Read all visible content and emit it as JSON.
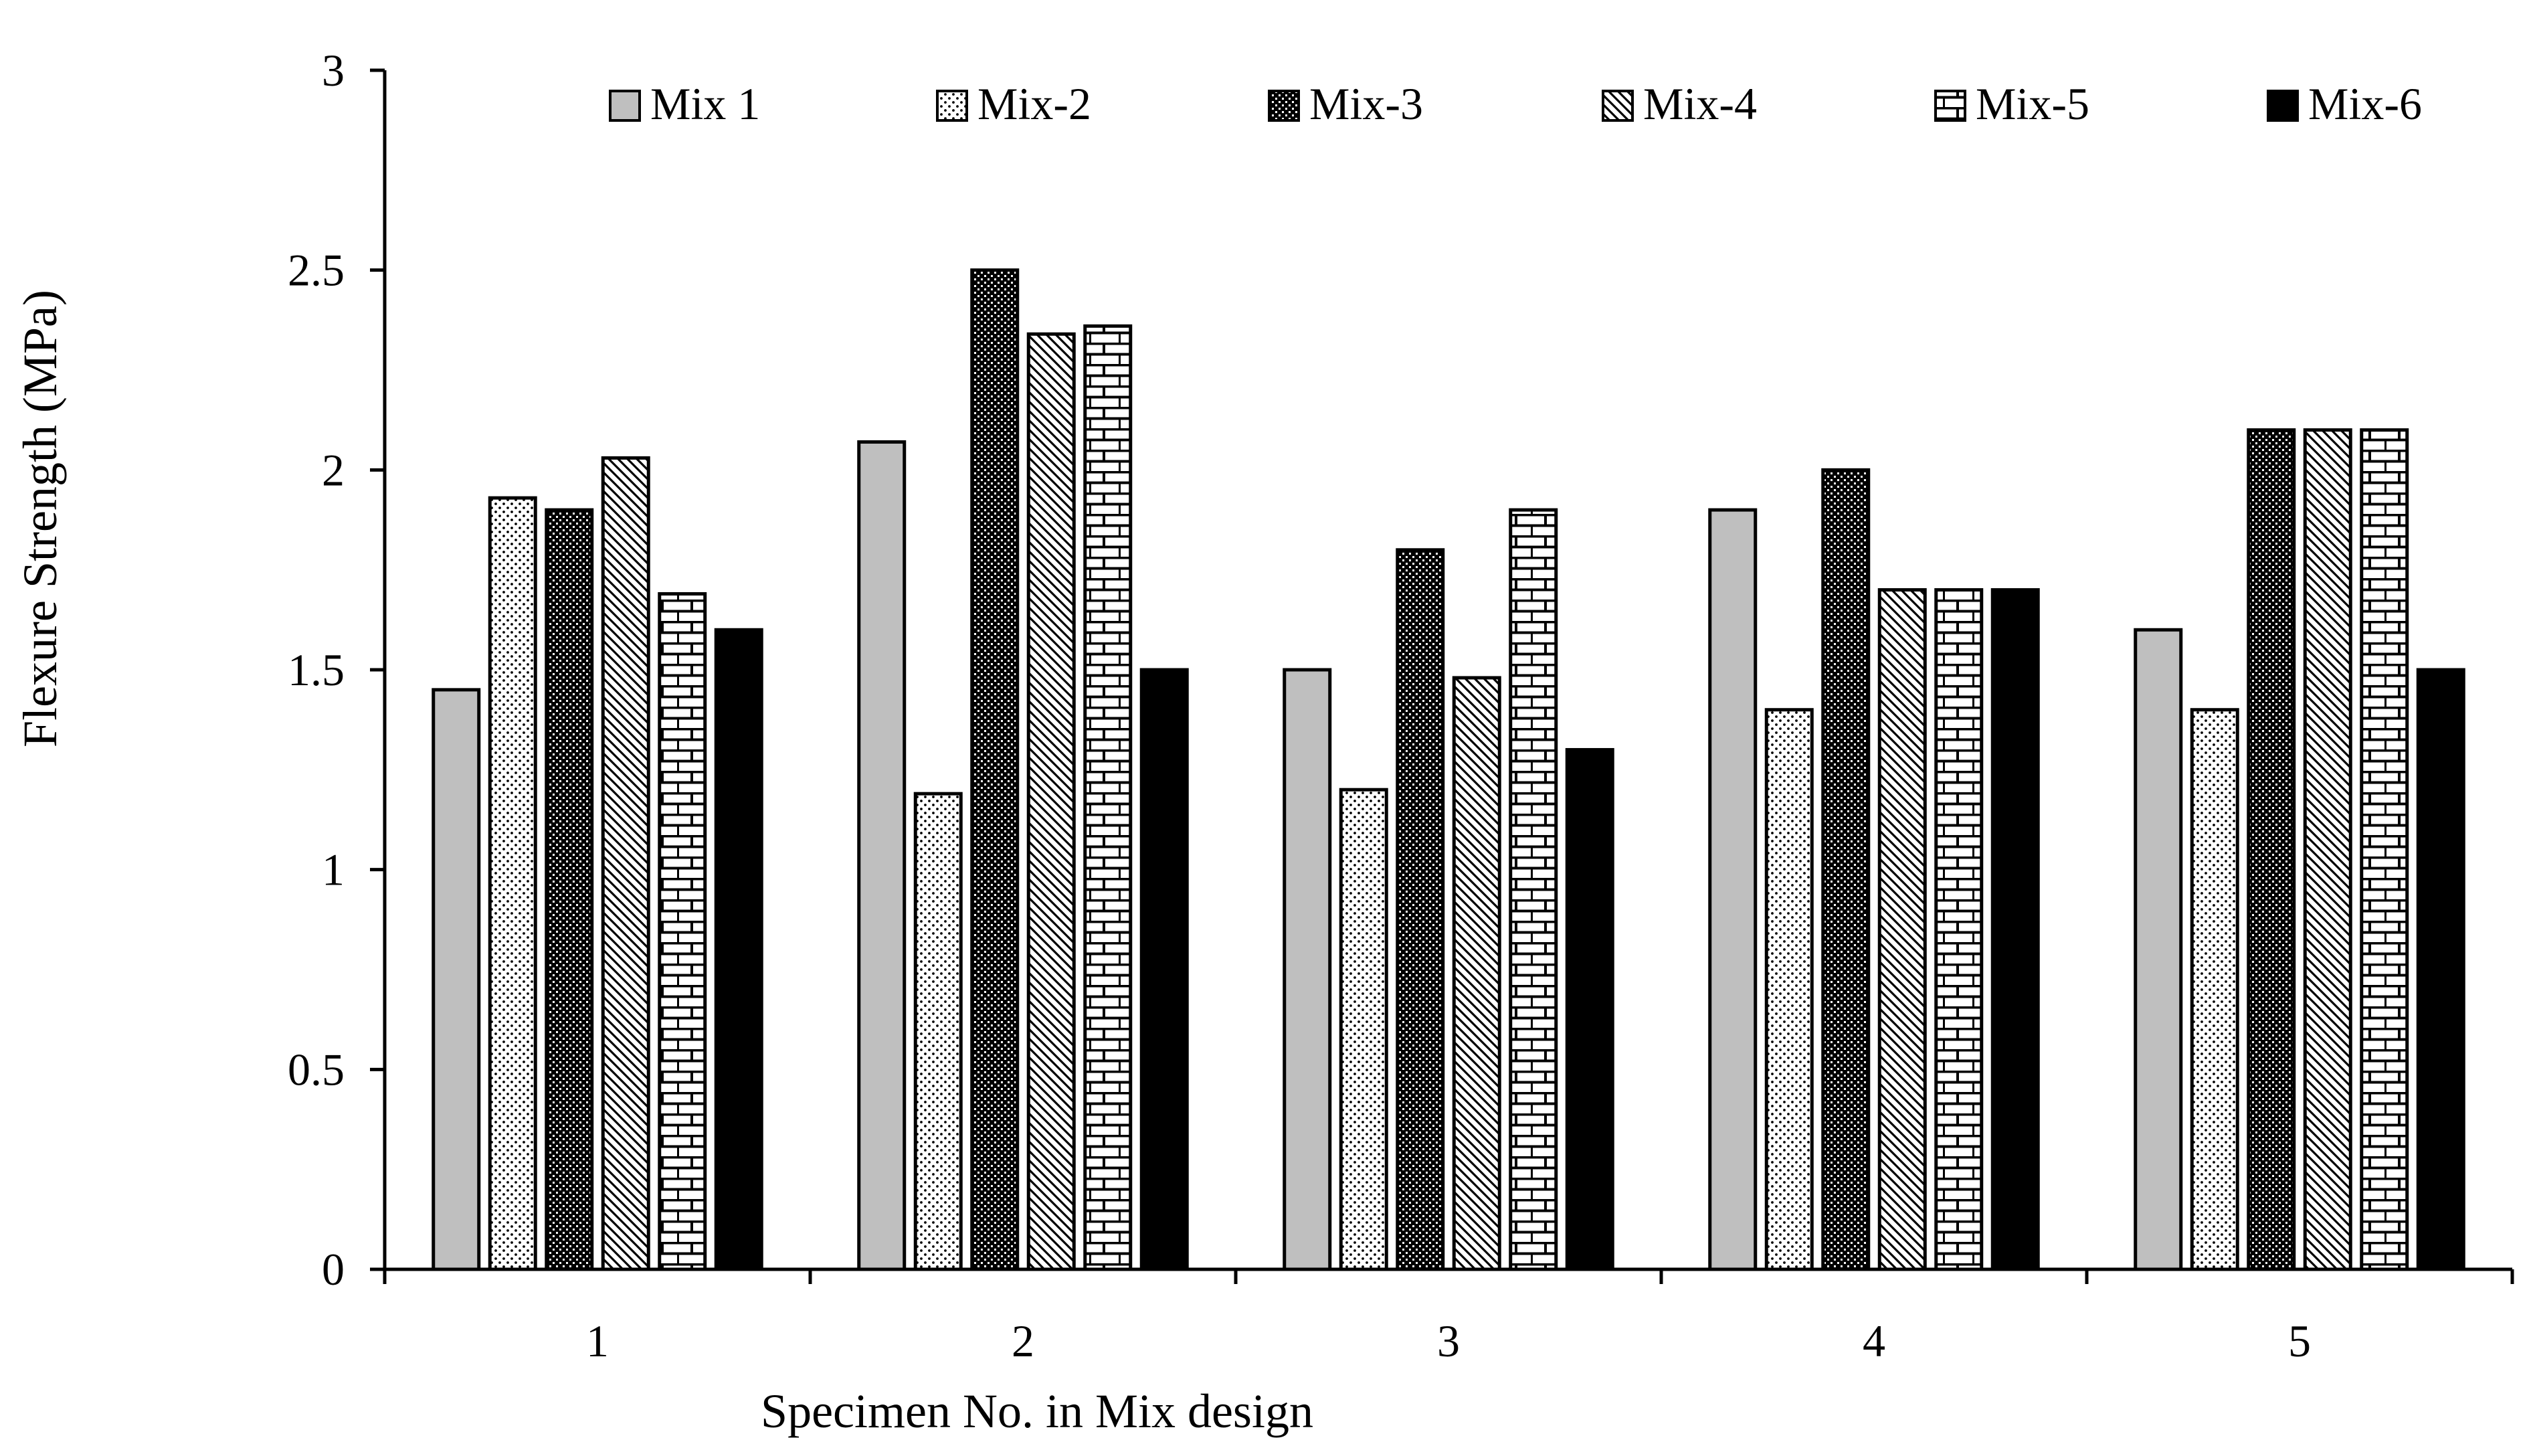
{
  "chart_data": {
    "type": "bar",
    "title": "",
    "xlabel": "Specimen No. in Mix design",
    "ylabel": "Flexure Strength (MPa)",
    "ylim": [
      0,
      3
    ],
    "yticks": [
      "0",
      "0.5",
      "1",
      "1.5",
      "2",
      "2.5",
      "3"
    ],
    "categories": [
      "1",
      "2",
      "3",
      "4",
      "5"
    ],
    "legend_position": "top",
    "series": [
      {
        "name": "Mix 1",
        "pattern": "solid-gray",
        "values": [
          1.45,
          2.07,
          1.5,
          1.9,
          1.6
        ]
      },
      {
        "name": "Mix-2",
        "pattern": "dots",
        "values": [
          1.93,
          1.19,
          1.2,
          1.4,
          1.4
        ]
      },
      {
        "name": "Mix-3",
        "pattern": "dense-dots",
        "values": [
          1.9,
          2.5,
          1.8,
          2.0,
          2.1
        ]
      },
      {
        "name": "Mix-4",
        "pattern": "diagonal",
        "values": [
          2.03,
          2.34,
          1.48,
          1.7,
          2.1
        ]
      },
      {
        "name": "Mix-5",
        "pattern": "brick",
        "values": [
          1.69,
          2.36,
          1.9,
          1.7,
          2.1
        ]
      },
      {
        "name": "Mix-6",
        "pattern": "solid-black",
        "values": [
          1.6,
          1.5,
          1.3,
          1.7,
          1.5
        ]
      }
    ]
  }
}
